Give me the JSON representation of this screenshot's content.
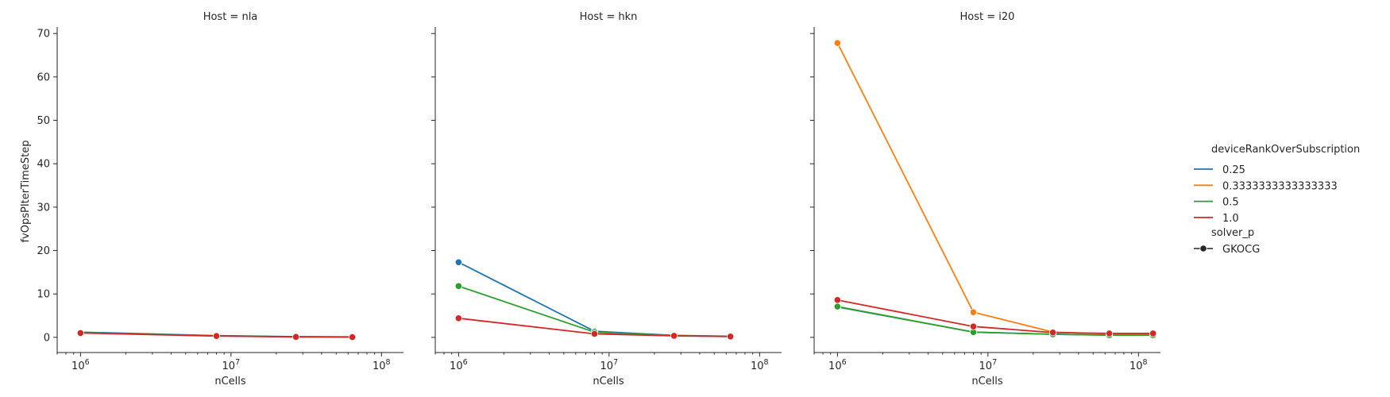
{
  "chart_data": {
    "type": "line",
    "xscale": "log",
    "xlim": [
      700000,
      140000000
    ],
    "ylim": [
      -3.5,
      71.5
    ],
    "xlabel": "nCells",
    "ylabel": "fvOpsPIterTimeStep",
    "xticks": [
      {
        "value": 1000000,
        "base": "10",
        "exp": "6"
      },
      {
        "value": 10000000,
        "base": "10",
        "exp": "7"
      },
      {
        "value": 100000000,
        "base": "10",
        "exp": "8"
      }
    ],
    "yticks": [
      "0",
      "10",
      "20",
      "30",
      "40",
      "50",
      "60",
      "70"
    ],
    "grid": false,
    "legend": {
      "placement": "right",
      "hue_title": "deviceRankOverSubscription",
      "style_title": "solver_p",
      "style_entry": "GKOCG"
    },
    "series_colors": [
      "#1f77b4",
      "#ff7f0e",
      "#2ca02c",
      "#d62728"
    ],
    "panels": [
      {
        "title": "Host = nla",
        "series": [
          {
            "name": "0.25",
            "x": [
              1000000,
              8000000,
              27000000,
              64000000
            ],
            "y": [
              1.2,
              0.4,
              0.15,
              0.1
            ]
          },
          {
            "name": "0.5",
            "x": [
              1000000,
              8000000,
              27000000,
              64000000
            ],
            "y": [
              1.1,
              0.35,
              0.12,
              0.08
            ]
          },
          {
            "name": "1.0",
            "x": [
              1000000,
              8000000,
              27000000,
              64000000
            ],
            "y": [
              1.0,
              0.3,
              0.1,
              0.06
            ]
          }
        ]
      },
      {
        "title": "Host = hkn",
        "series": [
          {
            "name": "0.25",
            "x": [
              1000000,
              8000000,
              27000000,
              64000000
            ],
            "y": [
              17.3,
              1.4,
              0.45,
              0.25
            ]
          },
          {
            "name": "0.5",
            "x": [
              1000000,
              8000000,
              27000000,
              64000000
            ],
            "y": [
              11.8,
              1.2,
              0.4,
              0.2
            ]
          },
          {
            "name": "1.0",
            "x": [
              1000000,
              8000000,
              27000000,
              64000000
            ],
            "y": [
              4.4,
              0.8,
              0.35,
              0.2
            ]
          }
        ]
      },
      {
        "title": "Host = i20",
        "series": [
          {
            "name": "0.25",
            "x": [
              1000000,
              8000000,
              27000000,
              64000000,
              125000000
            ],
            "y": [
              7.0,
              1.2,
              0.7,
              0.5,
              0.5
            ]
          },
          {
            "name": "0.3333333333333333",
            "x": [
              1000000,
              8000000,
              27000000,
              64000000,
              125000000
            ],
            "y": [
              67.8,
              5.8,
              1.2,
              0.8,
              0.7
            ]
          },
          {
            "name": "0.5",
            "x": [
              1000000,
              8000000,
              27000000,
              64000000,
              125000000
            ],
            "y": [
              7.1,
              1.2,
              0.7,
              0.5,
              0.5
            ]
          },
          {
            "name": "1.0",
            "x": [
              1000000,
              8000000,
              27000000,
              64000000,
              125000000
            ],
            "y": [
              8.6,
              2.5,
              1.1,
              0.9,
              0.9
            ]
          }
        ]
      }
    ]
  },
  "legend_entries": [
    {
      "label": "0.25",
      "color": "#1f77b4"
    },
    {
      "label": "0.3333333333333333",
      "color": "#ff7f0e"
    },
    {
      "label": "0.5",
      "color": "#2ca02c"
    },
    {
      "label": "1.0",
      "color": "#d62728"
    }
  ]
}
